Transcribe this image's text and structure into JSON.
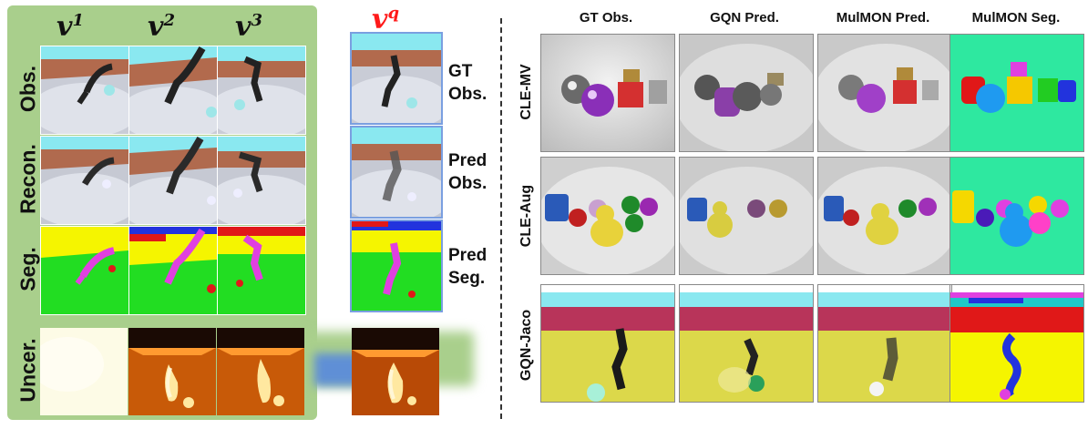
{
  "left_panel": {
    "view_labels": [
      {
        "base": "v",
        "sup": "1"
      },
      {
        "base": "v",
        "sup": "2"
      },
      {
        "base": "v",
        "sup": "3"
      }
    ],
    "query_label": {
      "base": "v",
      "sup": "q"
    },
    "row_labels": [
      "Obs.",
      "Recon.",
      "Seg.",
      "Uncer."
    ],
    "query_side_labels": [
      {
        "line1": "GT",
        "line2": "Obs."
      },
      {
        "line1": "Pred",
        "line2": "Obs."
      },
      {
        "line1": "Pred",
        "line2": "Seg."
      }
    ]
  },
  "right_panel": {
    "column_headers": [
      "GT Obs.",
      "GQN Pred.",
      "MulMON Pred.",
      "MulMON Seg."
    ],
    "row_labels": [
      "CLE-MV",
      "CLE-Aug",
      "GQN-Jaco"
    ]
  },
  "colors": {
    "panel_green": "#a9cf8c",
    "query_red": "#ff1a1a",
    "query_frame_blue": "#7a9fe0",
    "seg_yellow": "#f5f500",
    "seg_green": "#22dd22",
    "seg_magenta": "#e040e0",
    "seg_bg_cyan": "#2ee8a0"
  }
}
